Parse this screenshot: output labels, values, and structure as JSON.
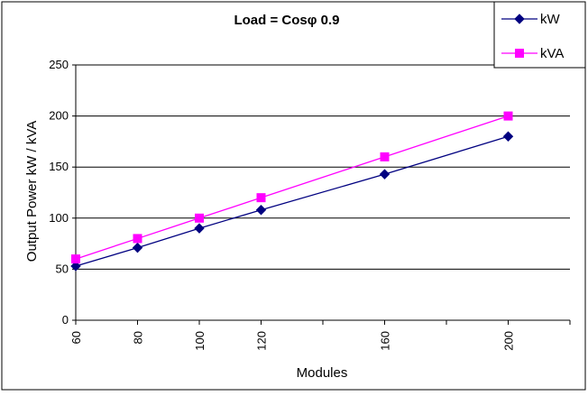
{
  "chart_data": {
    "type": "line",
    "title": "Load = Cosφ 0.9",
    "xlabel": "Modules",
    "ylabel": "Output Power kW / kVA",
    "x": [
      60,
      80,
      100,
      120,
      160,
      200
    ],
    "xlim": [
      60,
      220
    ],
    "ylim": [
      0,
      250
    ],
    "yticks": [
      0,
      50,
      100,
      150,
      200,
      250
    ],
    "x_tick_labels": [
      "60",
      "80",
      "100",
      "120",
      "160",
      "200"
    ],
    "grid": true,
    "legend_position": "top-right",
    "series": [
      {
        "name": "kW",
        "values": [
          53,
          71,
          90,
          108,
          143,
          180
        ],
        "color": "#000080",
        "marker": "diamond"
      },
      {
        "name": "kVA",
        "values": [
          60,
          80,
          100,
          120,
          160,
          200
        ],
        "color": "#ff00ff",
        "marker": "square"
      }
    ]
  }
}
